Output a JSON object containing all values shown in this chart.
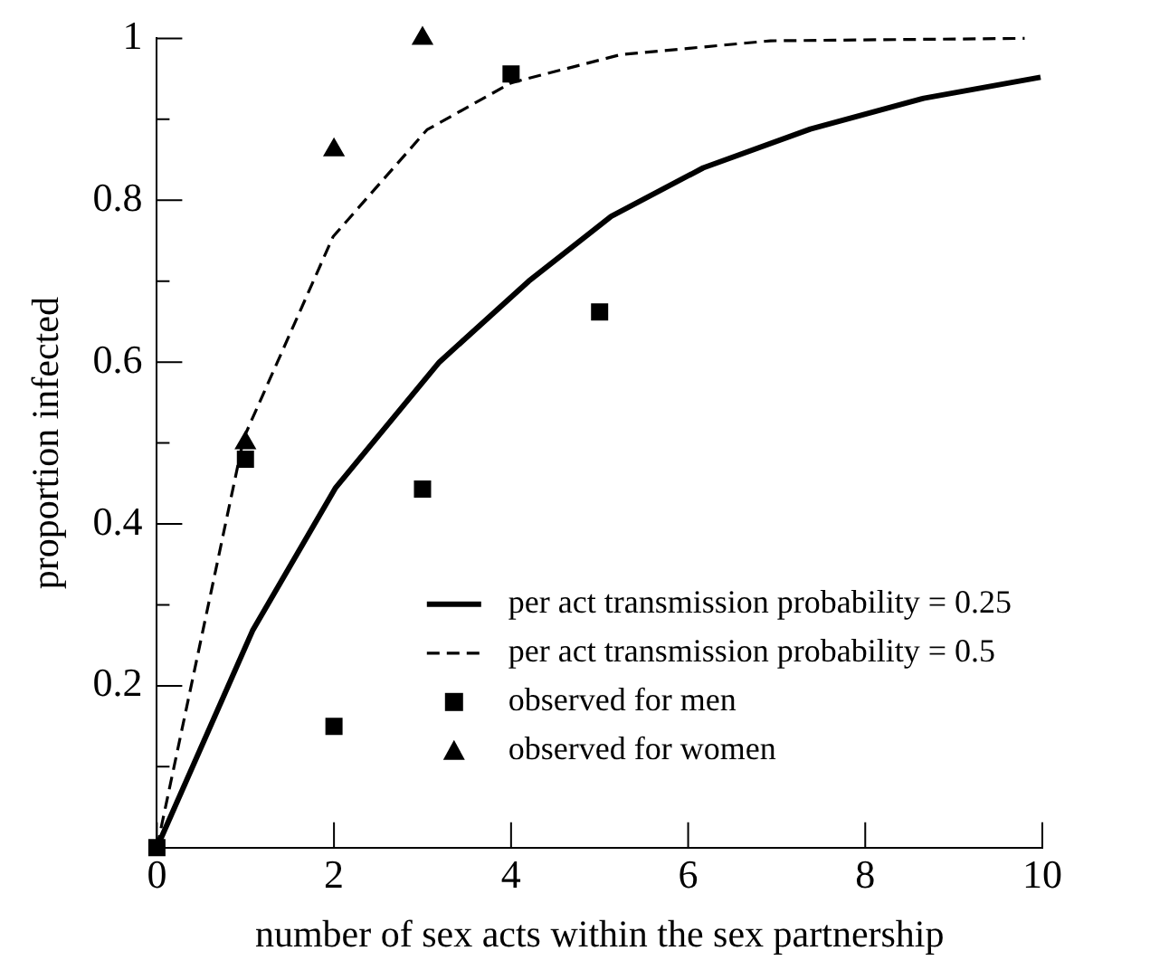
{
  "chart_data": {
    "type": "line",
    "xlabel": "number of sex acts within the sex partnership",
    "ylabel": "proportion infected",
    "xlim": [
      0,
      10
    ],
    "xticks": [
      0,
      2,
      4,
      6,
      8,
      10
    ],
    "ylim": [
      0,
      1
    ],
    "yticks": [
      {
        "value": 0.1,
        "label": null
      },
      0.2,
      {
        "value": 0.3,
        "label": null
      },
      0.4,
      {
        "value": 0.5,
        "label": null
      },
      0.6,
      {
        "value": 0.7,
        "label": null
      },
      0.8,
      {
        "value": 0.9,
        "label": null
      },
      1
    ],
    "grid": false,
    "legend": "bottom right",
    "series": [
      {
        "name": "per act transmission probability = 0.25",
        "type": "line",
        "line_style": "solid",
        "marker": "none",
        "color": "#000000",
        "x": [
          0,
          1.08,
          2.02,
          3.19,
          4.2,
          5.13,
          6.17,
          7.38,
          8.66,
          9.98
        ],
        "values": [
          0,
          0.268,
          0.445,
          0.6,
          0.7,
          0.78,
          0.84,
          0.888,
          0.926,
          0.952
        ]
      },
      {
        "name": "per act transmission probability = 0.5",
        "type": "line",
        "line_style": "dashed",
        "marker": "none",
        "color": "#000000",
        "x": [
          0,
          0.98,
          1.99,
          3.05,
          4.0,
          5.24,
          6.93,
          9.8
        ],
        "values": [
          0,
          0.506,
          0.755,
          0.887,
          0.945,
          0.98,
          0.997,
          1.0
        ]
      },
      {
        "name": "observed for men",
        "type": "scatter",
        "marker": "square",
        "color": "#000000",
        "x": [
          0,
          1,
          2,
          3,
          4,
          5
        ],
        "values": [
          0,
          0.48,
          0.15,
          0.443,
          0.956,
          0.662
        ]
      },
      {
        "name": "observed for women",
        "type": "scatter",
        "marker": "triangle",
        "color": "#000000",
        "x": [
          1,
          2,
          3
        ],
        "values": [
          0.5,
          0.862,
          1.0
        ]
      }
    ]
  }
}
